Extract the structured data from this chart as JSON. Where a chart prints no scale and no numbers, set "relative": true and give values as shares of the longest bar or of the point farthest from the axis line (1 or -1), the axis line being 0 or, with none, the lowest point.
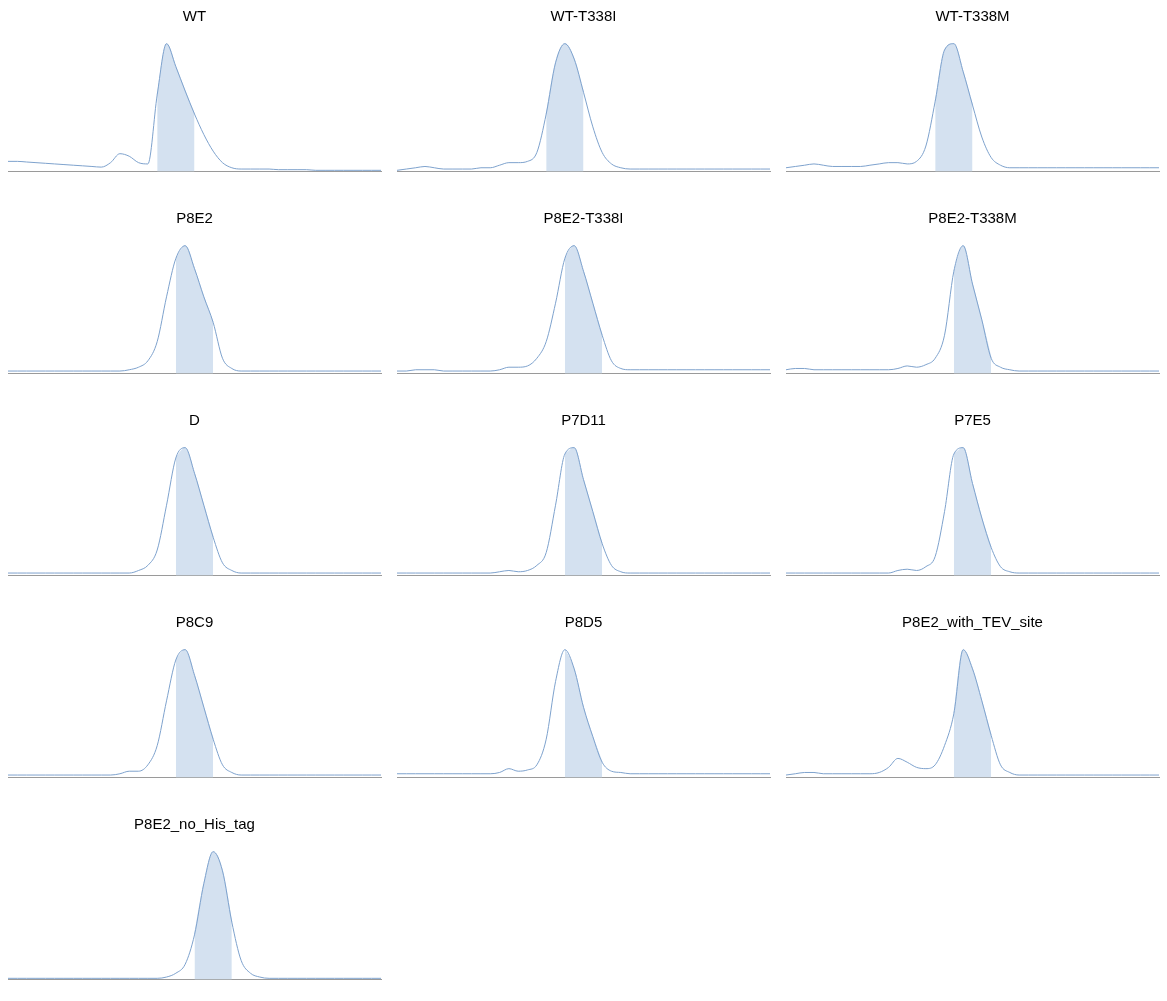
{
  "chart_data": [
    {
      "type": "line",
      "title": "WT",
      "relative": true,
      "categories": [
        null,
        null,
        null,
        null,
        null,
        null,
        null,
        null,
        null,
        null,
        null,
        null,
        null,
        null,
        null,
        null,
        null,
        null,
        null,
        null,
        null,
        null,
        null,
        null,
        null,
        null,
        null,
        null,
        null,
        null,
        null,
        null,
        null,
        null,
        null,
        null,
        null,
        null,
        null,
        null,
        null
      ],
      "series": [
        {
          "type": "line",
          "color": "#7ea2cd",
          "values": [
            0.08,
            0.08,
            0.075,
            0.07,
            0.065,
            0.06,
            0.055,
            0.05,
            0.045,
            0.04,
            0.035,
            0.07,
            0.14,
            0.12,
            0.07,
            0.06,
            0.6,
            1,
            0.82,
            0.63,
            0.45,
            0.29,
            0.16,
            0.07,
            0.03,
            0.02,
            0.02,
            0.02,
            0.02,
            0.015,
            0.015,
            0.015,
            0.015,
            0.01,
            0.01,
            0.01,
            0.01,
            0.01,
            0.01,
            0.01,
            0.01
          ]
        },
        {
          "type": "area",
          "color": "#d4e1f0",
          "values": [
            null,
            null,
            null,
            null,
            null,
            null,
            null,
            null,
            null,
            null,
            null,
            null,
            null,
            null,
            null,
            null,
            0.6,
            1,
            0.82,
            0.63,
            0.45,
            null,
            null,
            null,
            null,
            null,
            null,
            null,
            null,
            null,
            null,
            null,
            null,
            null,
            null,
            null,
            null,
            null,
            null,
            null,
            null
          ]
        }
      ]
    },
    {
      "type": "line",
      "title": "WT-T338I",
      "relative": true,
      "categories": [
        null,
        null,
        null,
        null,
        null,
        null,
        null,
        null,
        null,
        null,
        null,
        null,
        null,
        null,
        null,
        null,
        null,
        null,
        null,
        null,
        null,
        null,
        null,
        null,
        null,
        null,
        null,
        null,
        null,
        null,
        null,
        null,
        null,
        null,
        null,
        null,
        null,
        null,
        null,
        null,
        null
      ],
      "series": [
        {
          "type": "line",
          "color": "#7ea2cd",
          "values": [
            0.01,
            0.02,
            0.03,
            0.04,
            0.03,
            0.02,
            0.02,
            0.02,
            0.02,
            0.03,
            0.03,
            0.05,
            0.07,
            0.07,
            0.08,
            0.15,
            0.45,
            0.85,
            1,
            0.88,
            0.62,
            0.35,
            0.15,
            0.06,
            0.03,
            0.02,
            0.02,
            0.02,
            0.02,
            0.02,
            0.02,
            0.02,
            0.02,
            0.02,
            0.02,
            0.02,
            0.02,
            0.02,
            0.02,
            0.02,
            0.02
          ]
        },
        {
          "type": "area",
          "color": "#d4e1f0",
          "values": [
            null,
            null,
            null,
            null,
            null,
            null,
            null,
            null,
            null,
            null,
            null,
            null,
            null,
            null,
            null,
            null,
            0.45,
            0.85,
            1,
            0.88,
            0.62,
            null,
            null,
            null,
            null,
            null,
            null,
            null,
            null,
            null,
            null,
            null,
            null,
            null,
            null,
            null,
            null,
            null,
            null,
            null,
            null
          ]
        }
      ]
    },
    {
      "type": "line",
      "title": "WT-T338M",
      "relative": true,
      "categories": [
        null,
        null,
        null,
        null,
        null,
        null,
        null,
        null,
        null,
        null,
        null,
        null,
        null,
        null,
        null,
        null,
        null,
        null,
        null,
        null,
        null,
        null,
        null,
        null,
        null,
        null,
        null,
        null,
        null,
        null,
        null,
        null,
        null,
        null,
        null,
        null,
        null,
        null,
        null,
        null,
        null
      ],
      "series": [
        {
          "type": "line",
          "color": "#7ea2cd",
          "values": [
            0.03,
            0.04,
            0.05,
            0.06,
            0.05,
            0.04,
            0.04,
            0.04,
            0.04,
            0.05,
            0.06,
            0.07,
            0.07,
            0.06,
            0.08,
            0.2,
            0.55,
            0.95,
            1,
            0.78,
            0.52,
            0.27,
            0.11,
            0.05,
            0.03,
            0.03,
            0.03,
            0.03,
            0.03,
            0.03,
            0.03,
            0.03,
            0.03,
            0.03,
            0.03,
            0.03,
            0.03,
            0.03,
            0.03,
            0.03,
            0.03
          ]
        },
        {
          "type": "area",
          "color": "#d4e1f0",
          "values": [
            null,
            null,
            null,
            null,
            null,
            null,
            null,
            null,
            null,
            null,
            null,
            null,
            null,
            null,
            null,
            null,
            0.55,
            0.95,
            1,
            0.78,
            0.52,
            null,
            null,
            null,
            null,
            null,
            null,
            null,
            null,
            null,
            null,
            null,
            null,
            null,
            null,
            null,
            null,
            null,
            null,
            null,
            null
          ]
        }
      ]
    },
    {
      "type": "line",
      "title": "P8E2",
      "relative": true,
      "categories": [
        null,
        null,
        null,
        null,
        null,
        null,
        null,
        null,
        null,
        null,
        null,
        null,
        null,
        null,
        null,
        null,
        null,
        null,
        null,
        null,
        null,
        null,
        null,
        null,
        null,
        null,
        null,
        null,
        null,
        null,
        null,
        null,
        null,
        null,
        null,
        null,
        null,
        null,
        null,
        null,
        null
      ],
      "series": [
        {
          "type": "line",
          "color": "#7ea2cd",
          "values": [
            0.02,
            0.02,
            0.02,
            0.02,
            0.02,
            0.02,
            0.02,
            0.02,
            0.02,
            0.02,
            0.02,
            0.02,
            0.02,
            0.03,
            0.05,
            0.1,
            0.25,
            0.6,
            0.9,
            1,
            0.82,
            0.6,
            0.4,
            0.12,
            0.04,
            0.02,
            0.02,
            0.02,
            0.02,
            0.02,
            0.02,
            0.02,
            0.02,
            0.02,
            0.02,
            0.02,
            0.02,
            0.02,
            0.02,
            0.02,
            0.02
          ]
        },
        {
          "type": "area",
          "color": "#d4e1f0",
          "values": [
            null,
            null,
            null,
            null,
            null,
            null,
            null,
            null,
            null,
            null,
            null,
            null,
            null,
            null,
            null,
            null,
            null,
            null,
            0.9,
            1,
            0.82,
            0.6,
            0.4,
            null,
            null,
            null,
            null,
            null,
            null,
            null,
            null,
            null,
            null,
            null,
            null,
            null,
            null,
            null,
            null,
            null,
            null
          ]
        }
      ]
    },
    {
      "type": "line",
      "title": "P8E2-T338I",
      "relative": true,
      "categories": [
        null,
        null,
        null,
        null,
        null,
        null,
        null,
        null,
        null,
        null,
        null,
        null,
        null,
        null,
        null,
        null,
        null,
        null,
        null,
        null,
        null,
        null,
        null,
        null,
        null,
        null,
        null,
        null,
        null,
        null,
        null,
        null,
        null,
        null,
        null,
        null,
        null,
        null,
        null,
        null,
        null
      ],
      "series": [
        {
          "type": "line",
          "color": "#7ea2cd",
          "values": [
            0.02,
            0.02,
            0.03,
            0.03,
            0.03,
            0.02,
            0.02,
            0.02,
            0.02,
            0.02,
            0.02,
            0.03,
            0.05,
            0.05,
            0.06,
            0.12,
            0.25,
            0.55,
            0.9,
            1,
            0.8,
            0.55,
            0.3,
            0.1,
            0.04,
            0.03,
            0.03,
            0.03,
            0.03,
            0.03,
            0.03,
            0.03,
            0.03,
            0.03,
            0.03,
            0.03,
            0.03,
            0.03,
            0.03,
            0.03,
            0.03
          ]
        },
        {
          "type": "area",
          "color": "#d4e1f0",
          "values": [
            null,
            null,
            null,
            null,
            null,
            null,
            null,
            null,
            null,
            null,
            null,
            null,
            null,
            null,
            null,
            null,
            null,
            null,
            0.9,
            1,
            0.8,
            0.55,
            0.3,
            null,
            null,
            null,
            null,
            null,
            null,
            null,
            null,
            null,
            null,
            null,
            null,
            null,
            null,
            null,
            null,
            null,
            null
          ]
        }
      ]
    },
    {
      "type": "line",
      "title": "P8E2-T338M",
      "relative": true,
      "categories": [
        null,
        null,
        null,
        null,
        null,
        null,
        null,
        null,
        null,
        null,
        null,
        null,
        null,
        null,
        null,
        null,
        null,
        null,
        null,
        null,
        null,
        null,
        null,
        null,
        null,
        null,
        null,
        null,
        null,
        null,
        null,
        null,
        null,
        null,
        null,
        null,
        null,
        null,
        null,
        null,
        null
      ],
      "series": [
        {
          "type": "line",
          "color": "#7ea2cd",
          "values": [
            0.03,
            0.04,
            0.04,
            0.03,
            0.03,
            0.03,
            0.03,
            0.03,
            0.03,
            0.03,
            0.03,
            0.03,
            0.04,
            0.06,
            0.05,
            0.07,
            0.12,
            0.3,
            0.8,
            1,
            0.7,
            0.42,
            0.12,
            0.05,
            0.03,
            0.02,
            0.02,
            0.02,
            0.02,
            0.02,
            0.02,
            0.02,
            0.02,
            0.02,
            0.02,
            0.02,
            0.02,
            0.02,
            0.02,
            0.02,
            0.02
          ]
        },
        {
          "type": "area",
          "color": "#d4e1f0",
          "values": [
            null,
            null,
            null,
            null,
            null,
            null,
            null,
            null,
            null,
            null,
            null,
            null,
            null,
            null,
            null,
            null,
            null,
            null,
            0.8,
            1,
            0.7,
            0.42,
            0.12,
            null,
            null,
            null,
            null,
            null,
            null,
            null,
            null,
            null,
            null,
            null,
            null,
            null,
            null,
            null,
            null,
            null,
            null
          ]
        }
      ]
    },
    {
      "type": "line",
      "title": "D",
      "relative": true,
      "categories": [
        null,
        null,
        null,
        null,
        null,
        null,
        null,
        null,
        null,
        null,
        null,
        null,
        null,
        null,
        null,
        null,
        null,
        null,
        null,
        null,
        null,
        null,
        null,
        null,
        null,
        null,
        null,
        null,
        null,
        null,
        null,
        null,
        null,
        null,
        null,
        null,
        null,
        null,
        null,
        null,
        null
      ],
      "series": [
        {
          "type": "line",
          "color": "#7ea2cd",
          "values": [
            0.02,
            0.02,
            0.02,
            0.02,
            0.02,
            0.02,
            0.02,
            0.02,
            0.02,
            0.02,
            0.02,
            0.02,
            0.02,
            0.02,
            0.04,
            0.08,
            0.2,
            0.55,
            0.92,
            1,
            0.8,
            0.55,
            0.3,
            0.1,
            0.04,
            0.02,
            0.02,
            0.02,
            0.02,
            0.02,
            0.02,
            0.02,
            0.02,
            0.02,
            0.02,
            0.02,
            0.02,
            0.02,
            0.02,
            0.02,
            0.02
          ]
        },
        {
          "type": "area",
          "color": "#d4e1f0",
          "values": [
            null,
            null,
            null,
            null,
            null,
            null,
            null,
            null,
            null,
            null,
            null,
            null,
            null,
            null,
            null,
            null,
            null,
            null,
            0.92,
            1,
            0.8,
            0.55,
            0.3,
            null,
            null,
            null,
            null,
            null,
            null,
            null,
            null,
            null,
            null,
            null,
            null,
            null,
            null,
            null,
            null,
            null,
            null
          ]
        }
      ]
    },
    {
      "type": "line",
      "title": "P7D11",
      "relative": true,
      "categories": [
        null,
        null,
        null,
        null,
        null,
        null,
        null,
        null,
        null,
        null,
        null,
        null,
        null,
        null,
        null,
        null,
        null,
        null,
        null,
        null,
        null,
        null,
        null,
        null,
        null,
        null,
        null,
        null,
        null,
        null,
        null,
        null,
        null,
        null,
        null,
        null,
        null,
        null,
        null,
        null,
        null
      ],
      "series": [
        {
          "type": "line",
          "color": "#7ea2cd",
          "values": [
            0.02,
            0.02,
            0.02,
            0.02,
            0.02,
            0.02,
            0.02,
            0.02,
            0.02,
            0.02,
            0.02,
            0.03,
            0.04,
            0.03,
            0.04,
            0.08,
            0.18,
            0.55,
            0.95,
            1,
            0.75,
            0.5,
            0.25,
            0.08,
            0.03,
            0.02,
            0.02,
            0.02,
            0.02,
            0.02,
            0.02,
            0.02,
            0.02,
            0.02,
            0.02,
            0.02,
            0.02,
            0.02,
            0.02,
            0.02,
            0.02
          ]
        },
        {
          "type": "area",
          "color": "#d4e1f0",
          "values": [
            null,
            null,
            null,
            null,
            null,
            null,
            null,
            null,
            null,
            null,
            null,
            null,
            null,
            null,
            null,
            null,
            null,
            null,
            0.95,
            1,
            0.75,
            0.5,
            0.25,
            null,
            null,
            null,
            null,
            null,
            null,
            null,
            null,
            null,
            null,
            null,
            null,
            null,
            null,
            null,
            null,
            null,
            null
          ]
        }
      ]
    },
    {
      "type": "line",
      "title": "P7E5",
      "relative": true,
      "categories": [
        null,
        null,
        null,
        null,
        null,
        null,
        null,
        null,
        null,
        null,
        null,
        null,
        null,
        null,
        null,
        null,
        null,
        null,
        null,
        null,
        null,
        null,
        null,
        null,
        null,
        null,
        null,
        null,
        null,
        null,
        null,
        null,
        null,
        null,
        null,
        null,
        null,
        null,
        null,
        null,
        null
      ],
      "series": [
        {
          "type": "line",
          "color": "#7ea2cd",
          "values": [
            0.02,
            0.02,
            0.02,
            0.02,
            0.02,
            0.02,
            0.02,
            0.02,
            0.02,
            0.02,
            0.02,
            0.02,
            0.04,
            0.05,
            0.04,
            0.07,
            0.15,
            0.5,
            0.95,
            1,
            0.72,
            0.45,
            0.22,
            0.07,
            0.03,
            0.02,
            0.02,
            0.02,
            0.02,
            0.02,
            0.02,
            0.02,
            0.02,
            0.02,
            0.02,
            0.02,
            0.02,
            0.02,
            0.02,
            0.02,
            0.02
          ]
        },
        {
          "type": "area",
          "color": "#d4e1f0",
          "values": [
            null,
            null,
            null,
            null,
            null,
            null,
            null,
            null,
            null,
            null,
            null,
            null,
            null,
            null,
            null,
            null,
            null,
            null,
            0.95,
            1,
            0.72,
            0.45,
            0.22,
            null,
            null,
            null,
            null,
            null,
            null,
            null,
            null,
            null,
            null,
            null,
            null,
            null,
            null,
            null,
            null,
            null,
            null
          ]
        }
      ]
    },
    {
      "type": "line",
      "title": "P8C9",
      "relative": true,
      "categories": [
        null,
        null,
        null,
        null,
        null,
        null,
        null,
        null,
        null,
        null,
        null,
        null,
        null,
        null,
        null,
        null,
        null,
        null,
        null,
        null,
        null,
        null,
        null,
        null,
        null,
        null,
        null,
        null,
        null,
        null,
        null,
        null,
        null,
        null,
        null,
        null,
        null,
        null,
        null,
        null,
        null
      ],
      "series": [
        {
          "type": "line",
          "color": "#7ea2cd",
          "values": [
            0.02,
            0.02,
            0.02,
            0.02,
            0.02,
            0.02,
            0.02,
            0.02,
            0.02,
            0.02,
            0.02,
            0.02,
            0.03,
            0.05,
            0.05,
            0.1,
            0.25,
            0.6,
            0.92,
            1,
            0.8,
            0.55,
            0.3,
            0.1,
            0.04,
            0.02,
            0.02,
            0.02,
            0.02,
            0.02,
            0.02,
            0.02,
            0.02,
            0.02,
            0.02,
            0.02,
            0.02,
            0.02,
            0.02,
            0.02,
            0.02
          ]
        },
        {
          "type": "area",
          "color": "#d4e1f0",
          "values": [
            null,
            null,
            null,
            null,
            null,
            null,
            null,
            null,
            null,
            null,
            null,
            null,
            null,
            null,
            null,
            null,
            null,
            null,
            0.92,
            1,
            0.8,
            0.55,
            0.3,
            null,
            null,
            null,
            null,
            null,
            null,
            null,
            null,
            null,
            null,
            null,
            null,
            null,
            null,
            null,
            null,
            null,
            null
          ]
        }
      ]
    },
    {
      "type": "line",
      "title": "P8D5",
      "relative": true,
      "categories": [
        null,
        null,
        null,
        null,
        null,
        null,
        null,
        null,
        null,
        null,
        null,
        null,
        null,
        null,
        null,
        null,
        null,
        null,
        null,
        null,
        null,
        null,
        null,
        null,
        null,
        null,
        null,
        null,
        null,
        null,
        null,
        null,
        null,
        null,
        null,
        null,
        null,
        null,
        null,
        null,
        null
      ],
      "series": [
        {
          "type": "line",
          "color": "#7ea2cd",
          "values": [
            0.03,
            0.03,
            0.03,
            0.03,
            0.03,
            0.03,
            0.03,
            0.03,
            0.03,
            0.03,
            0.03,
            0.04,
            0.07,
            0.05,
            0.06,
            0.1,
            0.3,
            0.75,
            1,
            0.85,
            0.55,
            0.32,
            0.12,
            0.05,
            0.04,
            0.03,
            0.03,
            0.03,
            0.03,
            0.03,
            0.03,
            0.03,
            0.03,
            0.03,
            0.03,
            0.03,
            0.03,
            0.03,
            0.03,
            0.03,
            0.03
          ]
        },
        {
          "type": "area",
          "color": "#d4e1f0",
          "values": [
            null,
            null,
            null,
            null,
            null,
            null,
            null,
            null,
            null,
            null,
            null,
            null,
            null,
            null,
            null,
            null,
            null,
            null,
            1,
            0.85,
            0.55,
            0.32,
            0.12,
            null,
            null,
            null,
            null,
            null,
            null,
            null,
            null,
            null,
            null,
            null,
            null,
            null,
            null,
            null,
            null,
            null,
            null
          ]
        }
      ]
    },
    {
      "type": "line",
      "title": "P8E2_with_TEV_site",
      "relative": true,
      "categories": [
        null,
        null,
        null,
        null,
        null,
        null,
        null,
        null,
        null,
        null,
        null,
        null,
        null,
        null,
        null,
        null,
        null,
        null,
        null,
        null,
        null,
        null,
        null,
        null,
        null,
        null,
        null,
        null,
        null,
        null,
        null,
        null,
        null,
        null,
        null,
        null,
        null,
        null,
        null,
        null,
        null
      ],
      "series": [
        {
          "type": "line",
          "color": "#7ea2cd",
          "values": [
            0.02,
            0.03,
            0.04,
            0.04,
            0.03,
            0.03,
            0.03,
            0.03,
            0.03,
            0.03,
            0.04,
            0.08,
            0.15,
            0.12,
            0.08,
            0.07,
            0.1,
            0.25,
            0.5,
            1,
            0.85,
            0.6,
            0.33,
            0.1,
            0.04,
            0.02,
            0.02,
            0.02,
            0.02,
            0.02,
            0.02,
            0.02,
            0.02,
            0.02,
            0.02,
            0.02,
            0.02,
            0.02,
            0.02,
            0.02,
            0.02
          ]
        },
        {
          "type": "area",
          "color": "#d4e1f0",
          "values": [
            null,
            null,
            null,
            null,
            null,
            null,
            null,
            null,
            null,
            null,
            null,
            null,
            null,
            null,
            null,
            null,
            null,
            null,
            0.5,
            1,
            0.85,
            0.6,
            0.33,
            null,
            null,
            null,
            null,
            null,
            null,
            null,
            null,
            null,
            null,
            null,
            null,
            null,
            null,
            null,
            null,
            null,
            null
          ]
        }
      ]
    },
    {
      "type": "line",
      "title": "P8E2_no_His_tag",
      "relative": true,
      "categories": [
        null,
        null,
        null,
        null,
        null,
        null,
        null,
        null,
        null,
        null,
        null,
        null,
        null,
        null,
        null,
        null,
        null,
        null,
        null,
        null,
        null,
        null,
        null,
        null,
        null,
        null,
        null,
        null,
        null,
        null,
        null,
        null,
        null,
        null,
        null,
        null,
        null,
        null,
        null,
        null,
        null
      ],
      "series": [
        {
          "type": "line",
          "color": "#7ea2cd",
          "values": [
            0.01,
            0.01,
            0.01,
            0.01,
            0.01,
            0.01,
            0.01,
            0.01,
            0.01,
            0.01,
            0.01,
            0.01,
            0.01,
            0.01,
            0.01,
            0.01,
            0.01,
            0.02,
            0.05,
            0.12,
            0.35,
            0.75,
            1,
            0.85,
            0.45,
            0.15,
            0.05,
            0.02,
            0.01,
            0.01,
            0.01,
            0.01,
            0.01,
            0.01,
            0.01,
            0.01,
            0.01,
            0.01,
            0.01,
            0.01,
            0.01
          ]
        },
        {
          "type": "area",
          "color": "#d4e1f0",
          "values": [
            null,
            null,
            null,
            null,
            null,
            null,
            null,
            null,
            null,
            null,
            null,
            null,
            null,
            null,
            null,
            null,
            null,
            null,
            null,
            null,
            0.35,
            0.75,
            1,
            0.85,
            0.45,
            null,
            null,
            null,
            null,
            null,
            null,
            null,
            null,
            null,
            null,
            null,
            null,
            null,
            null,
            null,
            null
          ]
        }
      ]
    }
  ]
}
